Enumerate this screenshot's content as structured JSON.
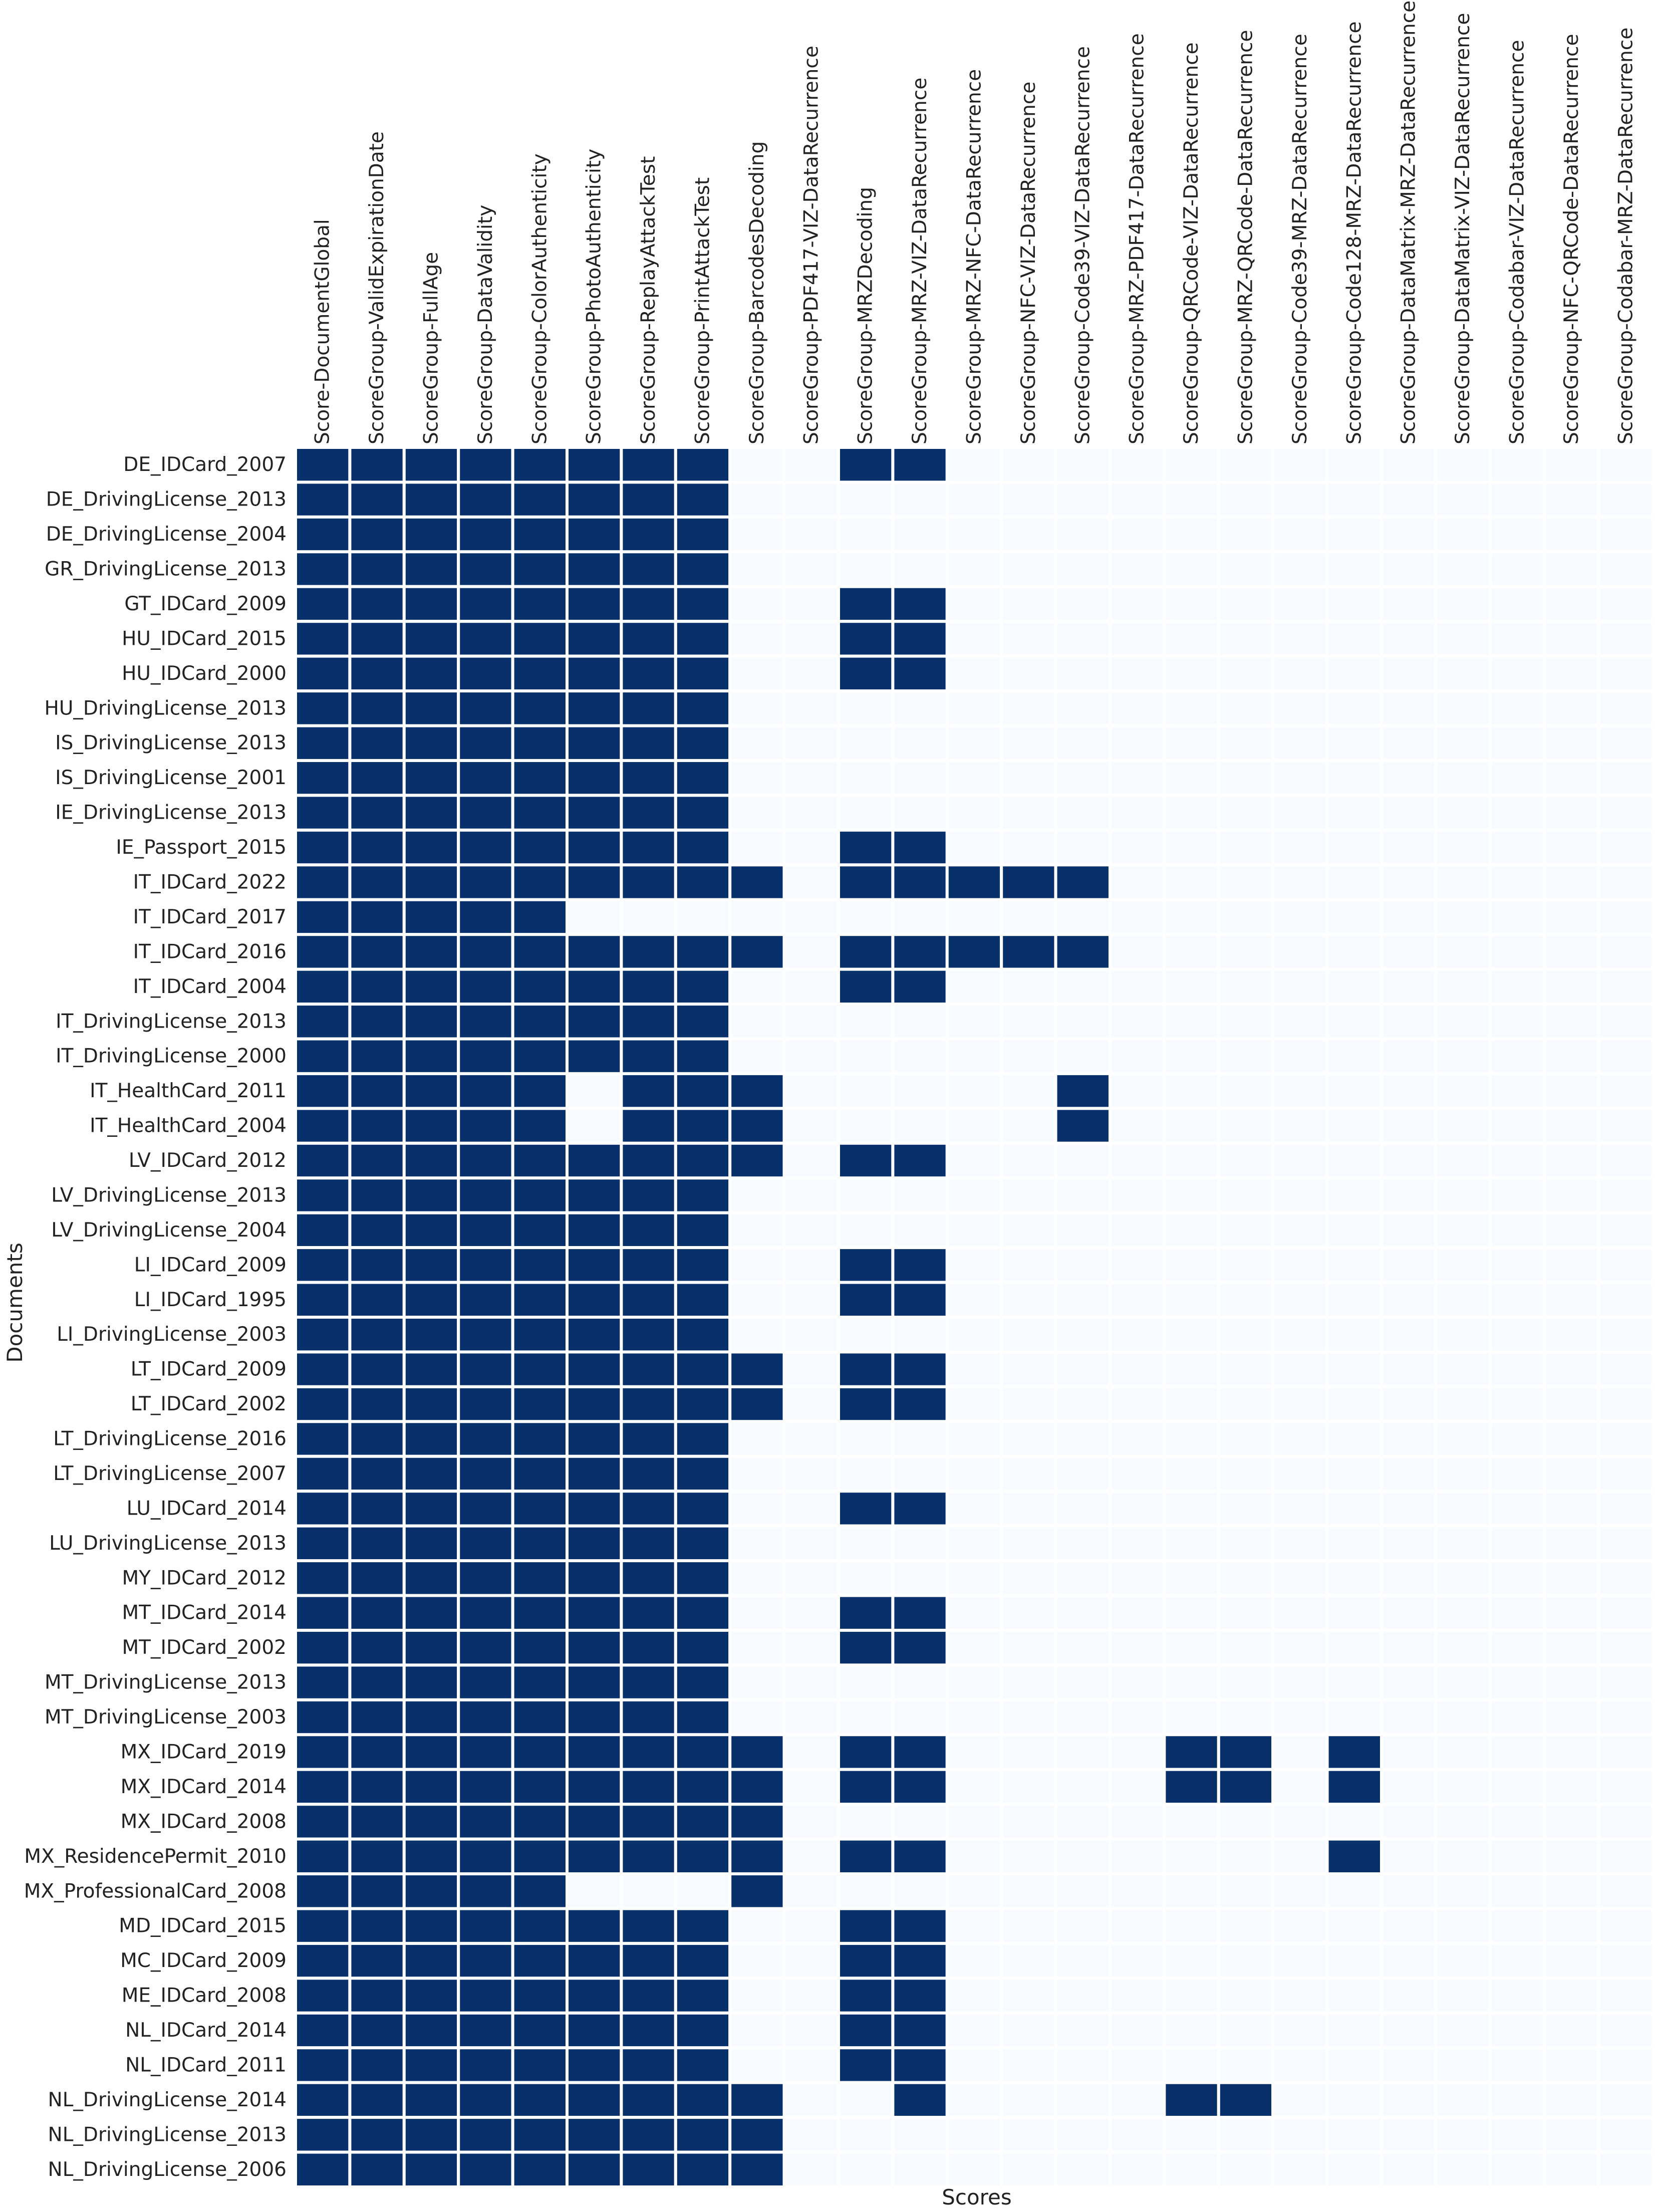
{
  "chart_data": {
    "type": "heatmap",
    "title": "",
    "xlabel": "Scores",
    "ylabel": "Documents",
    "colors": {
      "high": "#08306b",
      "low": "#f7fbff",
      "grid": "#ffffff"
    },
    "x": [
      "Score-DocumentGlobal",
      "ScoreGroup-ValidExpirationDate",
      "ScoreGroup-FullAge",
      "ScoreGroup-DataValidity",
      "ScoreGroup-ColorAuthenticity",
      "ScoreGroup-PhotoAuthenticity",
      "ScoreGroup-ReplayAttackTest",
      "ScoreGroup-PrintAttackTest",
      "ScoreGroup-BarcodesDecoding",
      "ScoreGroup-PDF417-VIZ-DataRecurrence",
      "ScoreGroup-MRZDecoding",
      "ScoreGroup-MRZ-VIZ-DataRecurrence",
      "ScoreGroup-MRZ-NFC-DataRecurrence",
      "ScoreGroup-NFC-VIZ-DataRecurrence",
      "ScoreGroup-Code39-VIZ-DataRecurrence",
      "ScoreGroup-MRZ-PDF417-DataRecurrence",
      "ScoreGroup-QRCode-VIZ-DataRecurrence",
      "ScoreGroup-MRZ-QRCode-DataRecurrence",
      "ScoreGroup-Code39-MRZ-DataRecurrence",
      "ScoreGroup-Code128-MRZ-DataRecurrence",
      "ScoreGroup-DataMatrix-MRZ-DataRecurrence",
      "ScoreGroup-DataMatrix-VIZ-DataRecurrence",
      "ScoreGroup-Codabar-VIZ-DataRecurrence",
      "ScoreGroup-NFC-QRCode-DataRecurrence",
      "ScoreGroup-Codabar-MRZ-DataRecurrence"
    ],
    "y": [
      "DE_IDCard_2007",
      "DE_DrivingLicense_2013",
      "DE_DrivingLicense_2004",
      "GR_DrivingLicense_2013",
      "GT_IDCard_2009",
      "HU_IDCard_2015",
      "HU_IDCard_2000",
      "HU_DrivingLicense_2013",
      "IS_DrivingLicense_2013",
      "IS_DrivingLicense_2001",
      "IE_DrivingLicense_2013",
      "IE_Passport_2015",
      "IT_IDCard_2022",
      "IT_IDCard_2017",
      "IT_IDCard_2016",
      "IT_IDCard_2004",
      "IT_DrivingLicense_2013",
      "IT_DrivingLicense_2000",
      "IT_HealthCard_2011",
      "IT_HealthCard_2004",
      "LV_IDCard_2012",
      "LV_DrivingLicense_2013",
      "LV_DrivingLicense_2004",
      "LI_IDCard_2009",
      "LI_IDCard_1995",
      "LI_DrivingLicense_2003",
      "LT_IDCard_2009",
      "LT_IDCard_2002",
      "LT_DrivingLicense_2016",
      "LT_DrivingLicense_2007",
      "LU_IDCard_2014",
      "LU_DrivingLicense_2013",
      "MY_IDCard_2012",
      "MT_IDCard_2014",
      "MT_IDCard_2002",
      "MT_DrivingLicense_2013",
      "MT_DrivingLicense_2003",
      "MX_IDCard_2019",
      "MX_IDCard_2014",
      "MX_IDCard_2008",
      "MX_ResidencePermit_2010",
      "MX_ProfessionalCard_2008",
      "MD_IDCard_2015",
      "MC_IDCard_2009",
      "ME_IDCard_2008",
      "NL_IDCard_2014",
      "NL_IDCard_2011",
      "NL_DrivingLicense_2014",
      "NL_DrivingLicense_2013",
      "NL_DrivingLicense_2006"
    ],
    "values": [
      [
        1,
        1,
        1,
        1,
        1,
        1,
        1,
        1,
        0,
        0,
        1,
        1,
        0,
        0,
        0,
        0,
        0,
        0,
        0,
        0,
        0,
        0,
        0,
        0,
        0
      ],
      [
        1,
        1,
        1,
        1,
        1,
        1,
        1,
        1,
        0,
        0,
        0,
        0,
        0,
        0,
        0,
        0,
        0,
        0,
        0,
        0,
        0,
        0,
        0,
        0,
        0
      ],
      [
        1,
        1,
        1,
        1,
        1,
        1,
        1,
        1,
        0,
        0,
        0,
        0,
        0,
        0,
        0,
        0,
        0,
        0,
        0,
        0,
        0,
        0,
        0,
        0,
        0
      ],
      [
        1,
        1,
        1,
        1,
        1,
        1,
        1,
        1,
        0,
        0,
        0,
        0,
        0,
        0,
        0,
        0,
        0,
        0,
        0,
        0,
        0,
        0,
        0,
        0,
        0
      ],
      [
        1,
        1,
        1,
        1,
        1,
        1,
        1,
        1,
        0,
        0,
        1,
        1,
        0,
        0,
        0,
        0,
        0,
        0,
        0,
        0,
        0,
        0,
        0,
        0,
        0
      ],
      [
        1,
        1,
        1,
        1,
        1,
        1,
        1,
        1,
        0,
        0,
        1,
        1,
        0,
        0,
        0,
        0,
        0,
        0,
        0,
        0,
        0,
        0,
        0,
        0,
        0
      ],
      [
        1,
        1,
        1,
        1,
        1,
        1,
        1,
        1,
        0,
        0,
        1,
        1,
        0,
        0,
        0,
        0,
        0,
        0,
        0,
        0,
        0,
        0,
        0,
        0,
        0
      ],
      [
        1,
        1,
        1,
        1,
        1,
        1,
        1,
        1,
        0,
        0,
        0,
        0,
        0,
        0,
        0,
        0,
        0,
        0,
        0,
        0,
        0,
        0,
        0,
        0,
        0
      ],
      [
        1,
        1,
        1,
        1,
        1,
        1,
        1,
        1,
        0,
        0,
        0,
        0,
        0,
        0,
        0,
        0,
        0,
        0,
        0,
        0,
        0,
        0,
        0,
        0,
        0
      ],
      [
        1,
        1,
        1,
        1,
        1,
        1,
        1,
        1,
        0,
        0,
        0,
        0,
        0,
        0,
        0,
        0,
        0,
        0,
        0,
        0,
        0,
        0,
        0,
        0,
        0
      ],
      [
        1,
        1,
        1,
        1,
        1,
        1,
        1,
        1,
        0,
        0,
        0,
        0,
        0,
        0,
        0,
        0,
        0,
        0,
        0,
        0,
        0,
        0,
        0,
        0,
        0
      ],
      [
        1,
        1,
        1,
        1,
        1,
        1,
        1,
        1,
        0,
        0,
        1,
        1,
        0,
        0,
        0,
        0,
        0,
        0,
        0,
        0,
        0,
        0,
        0,
        0,
        0
      ],
      [
        1,
        1,
        1,
        1,
        1,
        1,
        1,
        1,
        1,
        0,
        1,
        1,
        1,
        1,
        1,
        0,
        0,
        0,
        0,
        0,
        0,
        0,
        0,
        0,
        0
      ],
      [
        1,
        1,
        1,
        1,
        1,
        0,
        0,
        0,
        0,
        0,
        0,
        0,
        0,
        0,
        0,
        0,
        0,
        0,
        0,
        0,
        0,
        0,
        0,
        0,
        0
      ],
      [
        1,
        1,
        1,
        1,
        1,
        1,
        1,
        1,
        1,
        0,
        1,
        1,
        1,
        1,
        1,
        0,
        0,
        0,
        0,
        0,
        0,
        0,
        0,
        0,
        0
      ],
      [
        1,
        1,
        1,
        1,
        1,
        1,
        1,
        1,
        0,
        0,
        1,
        1,
        0,
        0,
        0,
        0,
        0,
        0,
        0,
        0,
        0,
        0,
        0,
        0,
        0
      ],
      [
        1,
        1,
        1,
        1,
        1,
        1,
        1,
        1,
        0,
        0,
        0,
        0,
        0,
        0,
        0,
        0,
        0,
        0,
        0,
        0,
        0,
        0,
        0,
        0,
        0
      ],
      [
        1,
        1,
        1,
        1,
        1,
        1,
        1,
        1,
        0,
        0,
        0,
        0,
        0,
        0,
        0,
        0,
        0,
        0,
        0,
        0,
        0,
        0,
        0,
        0,
        0
      ],
      [
        1,
        1,
        1,
        1,
        1,
        0,
        1,
        1,
        1,
        0,
        0,
        0,
        0,
        0,
        1,
        0,
        0,
        0,
        0,
        0,
        0,
        0,
        0,
        0,
        0
      ],
      [
        1,
        1,
        1,
        1,
        1,
        0,
        1,
        1,
        1,
        0,
        0,
        0,
        0,
        0,
        1,
        0,
        0,
        0,
        0,
        0,
        0,
        0,
        0,
        0,
        0
      ],
      [
        1,
        1,
        1,
        1,
        1,
        1,
        1,
        1,
        1,
        0,
        1,
        1,
        0,
        0,
        0,
        0,
        0,
        0,
        0,
        0,
        0,
        0,
        0,
        0,
        0
      ],
      [
        1,
        1,
        1,
        1,
        1,
        1,
        1,
        1,
        0,
        0,
        0,
        0,
        0,
        0,
        0,
        0,
        0,
        0,
        0,
        0,
        0,
        0,
        0,
        0,
        0
      ],
      [
        1,
        1,
        1,
        1,
        1,
        1,
        1,
        1,
        0,
        0,
        0,
        0,
        0,
        0,
        0,
        0,
        0,
        0,
        0,
        0,
        0,
        0,
        0,
        0,
        0
      ],
      [
        1,
        1,
        1,
        1,
        1,
        1,
        1,
        1,
        0,
        0,
        1,
        1,
        0,
        0,
        0,
        0,
        0,
        0,
        0,
        0,
        0,
        0,
        0,
        0,
        0
      ],
      [
        1,
        1,
        1,
        1,
        1,
        1,
        1,
        1,
        0,
        0,
        1,
        1,
        0,
        0,
        0,
        0,
        0,
        0,
        0,
        0,
        0,
        0,
        0,
        0,
        0
      ],
      [
        1,
        1,
        1,
        1,
        1,
        1,
        1,
        1,
        0,
        0,
        0,
        0,
        0,
        0,
        0,
        0,
        0,
        0,
        0,
        0,
        0,
        0,
        0,
        0,
        0
      ],
      [
        1,
        1,
        1,
        1,
        1,
        1,
        1,
        1,
        1,
        0,
        1,
        1,
        0,
        0,
        0,
        0,
        0,
        0,
        0,
        0,
        0,
        0,
        0,
        0,
        0
      ],
      [
        1,
        1,
        1,
        1,
        1,
        1,
        1,
        1,
        1,
        0,
        1,
        1,
        0,
        0,
        0,
        0,
        0,
        0,
        0,
        0,
        0,
        0,
        0,
        0,
        0
      ],
      [
        1,
        1,
        1,
        1,
        1,
        1,
        1,
        1,
        0,
        0,
        0,
        0,
        0,
        0,
        0,
        0,
        0,
        0,
        0,
        0,
        0,
        0,
        0,
        0,
        0
      ],
      [
        1,
        1,
        1,
        1,
        1,
        1,
        1,
        1,
        0,
        0,
        0,
        0,
        0,
        0,
        0,
        0,
        0,
        0,
        0,
        0,
        0,
        0,
        0,
        0,
        0
      ],
      [
        1,
        1,
        1,
        1,
        1,
        1,
        1,
        1,
        0,
        0,
        1,
        1,
        0,
        0,
        0,
        0,
        0,
        0,
        0,
        0,
        0,
        0,
        0,
        0,
        0
      ],
      [
        1,
        1,
        1,
        1,
        1,
        1,
        1,
        1,
        0,
        0,
        0,
        0,
        0,
        0,
        0,
        0,
        0,
        0,
        0,
        0,
        0,
        0,
        0,
        0,
        0
      ],
      [
        1,
        1,
        1,
        1,
        1,
        1,
        1,
        1,
        0,
        0,
        0,
        0,
        0,
        0,
        0,
        0,
        0,
        0,
        0,
        0,
        0,
        0,
        0,
        0,
        0
      ],
      [
        1,
        1,
        1,
        1,
        1,
        1,
        1,
        1,
        0,
        0,
        1,
        1,
        0,
        0,
        0,
        0,
        0,
        0,
        0,
        0,
        0,
        0,
        0,
        0,
        0
      ],
      [
        1,
        1,
        1,
        1,
        1,
        1,
        1,
        1,
        0,
        0,
        1,
        1,
        0,
        0,
        0,
        0,
        0,
        0,
        0,
        0,
        0,
        0,
        0,
        0,
        0
      ],
      [
        1,
        1,
        1,
        1,
        1,
        1,
        1,
        1,
        0,
        0,
        0,
        0,
        0,
        0,
        0,
        0,
        0,
        0,
        0,
        0,
        0,
        0,
        0,
        0,
        0
      ],
      [
        1,
        1,
        1,
        1,
        1,
        1,
        1,
        1,
        0,
        0,
        0,
        0,
        0,
        0,
        0,
        0,
        0,
        0,
        0,
        0,
        0,
        0,
        0,
        0,
        0
      ],
      [
        1,
        1,
        1,
        1,
        1,
        1,
        1,
        1,
        1,
        0,
        1,
        1,
        0,
        0,
        0,
        0,
        1,
        1,
        0,
        1,
        0,
        0,
        0,
        0,
        0
      ],
      [
        1,
        1,
        1,
        1,
        1,
        1,
        1,
        1,
        1,
        0,
        1,
        1,
        0,
        0,
        0,
        0,
        1,
        1,
        0,
        1,
        0,
        0,
        0,
        0,
        0
      ],
      [
        1,
        1,
        1,
        1,
        1,
        1,
        1,
        1,
        1,
        0,
        0,
        0,
        0,
        0,
        0,
        0,
        0,
        0,
        0,
        0,
        0,
        0,
        0,
        0,
        0
      ],
      [
        1,
        1,
        1,
        1,
        1,
        1,
        1,
        1,
        1,
        0,
        1,
        1,
        0,
        0,
        0,
        0,
        0,
        0,
        0,
        1,
        0,
        0,
        0,
        0,
        0
      ],
      [
        1,
        1,
        1,
        1,
        1,
        0,
        0,
        0,
        1,
        0,
        0,
        0,
        0,
        0,
        0,
        0,
        0,
        0,
        0,
        0,
        0,
        0,
        0,
        0,
        0
      ],
      [
        1,
        1,
        1,
        1,
        1,
        1,
        1,
        1,
        0,
        0,
        1,
        1,
        0,
        0,
        0,
        0,
        0,
        0,
        0,
        0,
        0,
        0,
        0,
        0,
        0
      ],
      [
        1,
        1,
        1,
        1,
        1,
        1,
        1,
        1,
        0,
        0,
        1,
        1,
        0,
        0,
        0,
        0,
        0,
        0,
        0,
        0,
        0,
        0,
        0,
        0,
        0
      ],
      [
        1,
        1,
        1,
        1,
        1,
        1,
        1,
        1,
        0,
        0,
        1,
        1,
        0,
        0,
        0,
        0,
        0,
        0,
        0,
        0,
        0,
        0,
        0,
        0,
        0
      ],
      [
        1,
        1,
        1,
        1,
        1,
        1,
        1,
        1,
        0,
        0,
        1,
        1,
        0,
        0,
        0,
        0,
        0,
        0,
        0,
        0,
        0,
        0,
        0,
        0,
        0
      ],
      [
        1,
        1,
        1,
        1,
        1,
        1,
        1,
        1,
        0,
        0,
        1,
        1,
        0,
        0,
        0,
        0,
        0,
        0,
        0,
        0,
        0,
        0,
        0,
        0,
        0
      ],
      [
        1,
        1,
        1,
        1,
        1,
        1,
        1,
        1,
        1,
        0,
        0,
        1,
        0,
        0,
        0,
        0,
        1,
        1,
        0,
        0,
        0,
        0,
        0,
        0,
        0
      ],
      [
        1,
        1,
        1,
        1,
        1,
        1,
        1,
        1,
        1,
        0,
        0,
        0,
        0,
        0,
        0,
        0,
        0,
        0,
        0,
        0,
        0,
        0,
        0,
        0,
        0
      ],
      [
        1,
        1,
        1,
        1,
        1,
        1,
        1,
        1,
        1,
        0,
        0,
        0,
        0,
        0,
        0,
        0,
        0,
        0,
        0,
        0,
        0,
        0,
        0,
        0,
        0
      ]
    ]
  }
}
